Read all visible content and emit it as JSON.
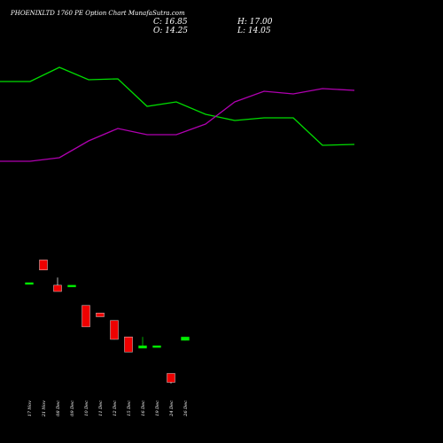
{
  "header": {
    "title": "PHOENIXLTD 1760 PE Option Chart MunafaSutra.com",
    "close": "C: 16.85",
    "open": "O: 14.25",
    "high": "H: 17.00",
    "low": "L: 14.05"
  },
  "chart_data": {
    "type": "candlestick",
    "title": "PHOENIXLTD 1760 PE Option Chart MunafaSutra.com",
    "x_labels": [
      "17 Nov",
      "21 Nov",
      "08 Dec",
      "09 Dec",
      "10 Dec",
      "11 Dec",
      "12 Dec",
      "15 Dec",
      "16 Dec",
      "19 Dec",
      "24 Dec",
      "26 Dec"
    ],
    "candles": [
      {
        "date": "17 Nov",
        "open": 60.0,
        "high": 60.0,
        "low": 60.0,
        "close": 60.0
      },
      {
        "date": "21 Nov",
        "open": 78.0,
        "high": 78.0,
        "low": 70.0,
        "close": 70.0
      },
      {
        "date": "08 Dec",
        "open": 58.0,
        "high": 64.0,
        "low": 53.0,
        "close": 53.0
      },
      {
        "date": "09 Dec",
        "open": 57.0,
        "high": 58.0,
        "low": 57.0,
        "close": 58.0
      },
      {
        "date": "10 Dec",
        "open": 42.0,
        "high": 42.0,
        "low": 25.0,
        "close": 25.0
      },
      {
        "date": "11 Dec",
        "open": 36.0,
        "high": 36.0,
        "low": 33.0,
        "close": 33.0
      },
      {
        "date": "12 Dec",
        "open": 30.0,
        "high": 30.0,
        "low": 15.0,
        "close": 15.0
      },
      {
        "date": "15 Dec",
        "open": 17.0,
        "high": 17.0,
        "low": 5.0,
        "close": 5.0
      },
      {
        "date": "16 Dec",
        "open": 8.0,
        "high": 17.0,
        "low": 8.0,
        "close": 10.0
      },
      {
        "date": "19 Dec",
        "open": 10.0,
        "high": 10.0,
        "low": 10.0,
        "close": 10.0
      },
      {
        "date": "24 Dec",
        "open": -12.0,
        "high": -12.0,
        "low": -20.0,
        "close": -19.0
      },
      {
        "date": "26 Dec",
        "open": 14.25,
        "high": 17.0,
        "low": 14.05,
        "close": 16.85
      }
    ],
    "series": [
      {
        "color": "#00dd00",
        "values": [
          228,
          228,
          244,
          230,
          231,
          200,
          205,
          191,
          184,
          187,
          187,
          156,
          157
        ]
      },
      {
        "color": "#b000b0",
        "values": [
          138,
          138,
          142,
          161,
          175,
          168,
          168,
          180,
          205,
          217,
          214,
          220,
          218
        ]
      }
    ],
    "price_range": [
      -25,
      105
    ],
    "colors": {
      "up": "#00ee00",
      "down": "#ee0000",
      "background": "#000000"
    }
  }
}
